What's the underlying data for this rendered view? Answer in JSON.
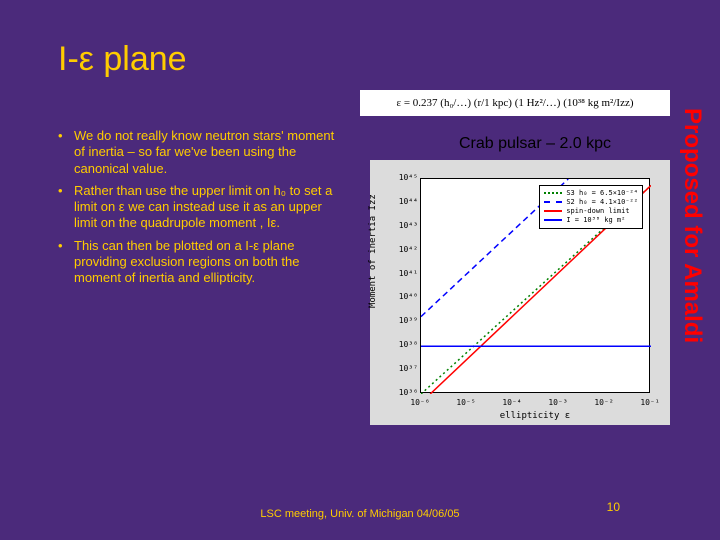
{
  "title": "I-ε plane",
  "equation": "ε = 0.237 (h₀/…) (r/1 kpc) (1 Hz²/…) (10³⁸ kg m²/Izz)",
  "bullets": [
    "We do not really know neutron stars' moment of inertia – so far we've been using the canonical value.",
    "Rather than use the upper limit on h₀ to set a limit on ε we can instead use it as an upper limit on the quadrupole moment , Iε.",
    "This can then be plotted on a I-ε plane providing exclusion regions on both the moment of inertia and ellipticity."
  ],
  "chart": {
    "title": "Crab pulsar – 2.0 kpc",
    "type": "line",
    "xlabel": "ellipticity ε",
    "ylabel": "Moment of inertia Izz",
    "xscale": "log",
    "yscale": "log",
    "xticks": [
      "10⁻⁶",
      "10⁻⁵",
      "10⁻⁴",
      "10⁻³",
      "10⁻²",
      "10⁻¹"
    ],
    "yticks": [
      "10³⁶",
      "10³⁷",
      "10³⁸",
      "10³⁹",
      "10⁴⁰",
      "10⁴¹",
      "10⁴²",
      "10⁴³",
      "10⁴⁴",
      "10⁴⁵"
    ],
    "xlim_frac": [
      0,
      1
    ],
    "ylim_frac": [
      0,
      1
    ],
    "background_color": "#dcdcdc",
    "plot_bgcolor": "#ffffff",
    "series": [
      {
        "label": "S3 h₀ = 6.5×10⁻²⁴",
        "color": "#008000",
        "dash": "dotted",
        "points_frac": [
          [
            0.0,
            0.0
          ],
          [
            1.0,
            0.97
          ]
        ]
      },
      {
        "label": "S2 h₀ = 4.1×10⁻²²",
        "color": "#0000ff",
        "dash": "dashed",
        "points_frac": [
          [
            0.0,
            0.36
          ],
          [
            0.64,
            1.0
          ]
        ]
      },
      {
        "label": "spin-down limit",
        "color": "#ff0000",
        "dash": "solid",
        "points_frac": [
          [
            0.04,
            0.0
          ],
          [
            1.0,
            0.97
          ]
        ]
      },
      {
        "label": "I = 10³⁸ kg m²",
        "color": "#0000ff",
        "dash": "solid",
        "points_frac": [
          [
            0.0,
            0.222
          ],
          [
            1.0,
            0.222
          ]
        ]
      }
    ]
  },
  "footer": "LSC meeting, Univ. of Michigan 04/06/05",
  "page": "10",
  "side_text": "Proposed for Amaldi",
  "colors": {
    "bg": "#4b2a7b",
    "accent": "#ffcc00",
    "side": "#ff0000"
  }
}
